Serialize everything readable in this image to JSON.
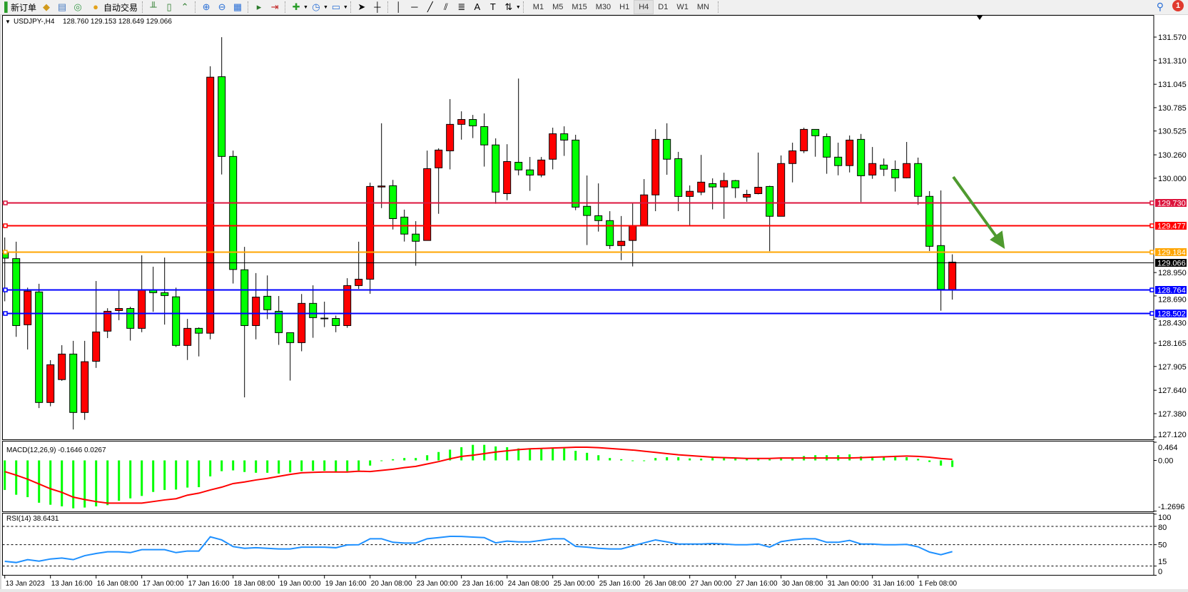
{
  "toolbar": {
    "new_order_label": "新订单",
    "auto_trading_label": "自动交易",
    "timeframes": [
      "M1",
      "M5",
      "M15",
      "M30",
      "H1",
      "H4",
      "D1",
      "W1",
      "MN"
    ],
    "active_timeframe": "H4",
    "notification_count": "1",
    "icons": [
      "new-order-icon",
      "gold-bars-icon",
      "history-icon",
      "signal-icon",
      "auto-trading-icon",
      "bar-chart-icon",
      "candlestick-icon",
      "line-chart-icon",
      "zoom-in-icon",
      "zoom-out-icon",
      "tile-windows-icon",
      "auto-scroll-icon",
      "chart-shift-icon",
      "indicators-icon",
      "periods-icon",
      "templates-icon",
      "cursor-icon",
      "crosshair-icon",
      "vertical-line-icon",
      "horizontal-line-icon",
      "trendline-icon",
      "equidistant-channel-icon",
      "fibonacci-icon",
      "text-icon",
      "text-label-icon",
      "arrows-icon",
      "search-icon",
      "notification-icon"
    ]
  },
  "header": {
    "symbol": "USDJPY-,H4",
    "ohlc": "128.760 129.153 128.649 129.066"
  },
  "colors": {
    "bull": "#ff0000",
    "bear": "#00ff00",
    "arrow": "#4e9a2e",
    "macd_hist": "#00ff00",
    "macd_signal": "#ff0000",
    "rsi": "#1e90ff"
  },
  "price_axis": {
    "ticks": [
      "131.570",
      "131.310",
      "131.045",
      "130.785",
      "130.525",
      "130.260",
      "130.000",
      "128.950",
      "128.690",
      "128.430",
      "128.165",
      "127.905",
      "127.640",
      "127.380",
      "127.120"
    ]
  },
  "levels": [
    {
      "price": "129.730",
      "color": "#dc143c"
    },
    {
      "price": "129.477",
      "color": "#ff0000"
    },
    {
      "price": "129.184",
      "color": "#ffa500"
    },
    {
      "price": "129.066",
      "color": "#000000",
      "bid": true
    },
    {
      "price": "128.764",
      "color": "#0000ff"
    },
    {
      "price": "128.502",
      "color": "#0000ff"
    }
  ],
  "time_axis": [
    "13 Jan 2023",
    "13 Jan 16:00",
    "16 Jan 08:00",
    "17 Jan 00:00",
    "17 Jan 16:00",
    "18 Jan 08:00",
    "19 Jan 00:00",
    "19 Jan 16:00",
    "20 Jan 08:00",
    "23 Jan 00:00",
    "23 Jan 16:00",
    "24 Jan 08:00",
    "25 Jan 00:00",
    "25 Jan 16:00",
    "26 Jan 08:00",
    "27 Jan 00:00",
    "27 Jan 16:00",
    "30 Jan 08:00",
    "31 Jan 00:00",
    "31 Jan 16:00",
    "1 Feb 08:00"
  ],
  "macd": {
    "label": "MACD(12,26,9) -0.1646 0.0267",
    "axis": [
      "0.464",
      "0.00",
      "-1.2696"
    ]
  },
  "rsi": {
    "label": "RSI(14) 38.6431",
    "axis": [
      "100",
      "80",
      "50",
      "15",
      "0"
    ],
    "levels": [
      80,
      50,
      15
    ]
  },
  "chart_data": {
    "type": "candlestick",
    "symbol": "USDJPY-",
    "timeframe": "H4",
    "ylim": [
      127.12,
      131.57
    ],
    "ohlc": [
      [
        129.17,
        129.34,
        128.63,
        129.11
      ],
      [
        129.105,
        129.293,
        128.235,
        128.36
      ],
      [
        128.369,
        128.782,
        128.094,
        128.743
      ],
      [
        128.734,
        128.825,
        127.442,
        127.504
      ],
      [
        127.504,
        127.975,
        127.462,
        127.924
      ],
      [
        127.759,
        128.142,
        127.745,
        128.043
      ],
      [
        128.043,
        128.19,
        127.204,
        127.393
      ],
      [
        127.393,
        128.19,
        127.311,
        127.958
      ],
      [
        127.963,
        128.856,
        127.889,
        128.289
      ],
      [
        128.298,
        128.553,
        128.221,
        128.519
      ],
      [
        128.527,
        128.76,
        128.42,
        128.55
      ],
      [
        128.55,
        128.57,
        128.193,
        128.329
      ],
      [
        128.329,
        129.142,
        128.286,
        128.76
      ],
      [
        128.76,
        129.015,
        128.513,
        128.726
      ],
      [
        128.726,
        129.117,
        128.371,
        128.694
      ],
      [
        128.68,
        128.782,
        128.122,
        128.139
      ],
      [
        128.139,
        128.434,
        127.977,
        128.329
      ],
      [
        128.329,
        128.34,
        128.017,
        128.275
      ],
      [
        128.275,
        131.246,
        128.207,
        131.124
      ],
      [
        131.129,
        131.569,
        130.041,
        130.242
      ],
      [
        130.242,
        130.307,
        128.828,
        128.984
      ],
      [
        128.981,
        129.236,
        127.561,
        128.36
      ],
      [
        128.36,
        128.944,
        128.207,
        128.677
      ],
      [
        128.686,
        128.918,
        128.431,
        128.536
      ],
      [
        128.519,
        128.689,
        128.145,
        128.281
      ],
      [
        128.281,
        128.281,
        127.748,
        128.17
      ],
      [
        128.17,
        128.711,
        128.074,
        128.607
      ],
      [
        128.607,
        128.808,
        128.224,
        128.448
      ],
      [
        128.443,
        128.626,
        128.343,
        128.441
      ],
      [
        128.439,
        128.471,
        128.286,
        128.36
      ],
      [
        128.36,
        128.887,
        128.335,
        128.805
      ],
      [
        128.805,
        129.293,
        128.768,
        128.876
      ],
      [
        128.876,
        129.95,
        128.714,
        129.908
      ],
      [
        129.902,
        130.611,
        129.667,
        129.913
      ],
      [
        129.916,
        129.981,
        129.429,
        129.55
      ],
      [
        129.567,
        129.65,
        129.295,
        129.378
      ],
      [
        129.378,
        129.522,
        129.026,
        129.298
      ],
      [
        129.307,
        130.307,
        129.307,
        130.106
      ],
      [
        130.115,
        130.333,
        129.604,
        130.313
      ],
      [
        130.304,
        130.88,
        130.098,
        130.599
      ],
      [
        130.599,
        130.744,
        130.429,
        130.653
      ],
      [
        130.653,
        130.704,
        130.446,
        130.582
      ],
      [
        130.574,
        130.721,
        130.129,
        130.37
      ],
      [
        130.37,
        130.443,
        129.715,
        129.845
      ],
      [
        129.828,
        130.378,
        129.755,
        130.185
      ],
      [
        130.177,
        131.109,
        130.032,
        130.092
      ],
      [
        130.092,
        130.236,
        129.859,
        130.035
      ],
      [
        130.035,
        130.236,
        130.01,
        130.202
      ],
      [
        130.211,
        130.562,
        130.098,
        130.494
      ],
      [
        130.494,
        130.577,
        130.248,
        130.424
      ],
      [
        130.424,
        130.483,
        129.644,
        129.678
      ],
      [
        129.687,
        130.03,
        129.256,
        129.585
      ],
      [
        129.582,
        129.942,
        129.406,
        129.528
      ],
      [
        129.528,
        129.633,
        129.213,
        129.25
      ],
      [
        129.25,
        129.579,
        129.088,
        129.298
      ],
      [
        129.307,
        129.721,
        129.018,
        129.468
      ],
      [
        129.477,
        129.99,
        129.477,
        129.814
      ],
      [
        129.814,
        130.545,
        129.633,
        130.432
      ],
      [
        130.432,
        130.611,
        130.038,
        130.211
      ],
      [
        130.217,
        130.293,
        129.633,
        129.797
      ],
      [
        129.797,
        129.919,
        129.477,
        129.854
      ],
      [
        129.845,
        130.259,
        129.811,
        129.956
      ],
      [
        129.939,
        129.998,
        129.653,
        129.902
      ],
      [
        129.902,
        130.061,
        129.548,
        129.973
      ],
      [
        129.973,
        129.981,
        129.78,
        129.893
      ],
      [
        129.789,
        129.871,
        129.738,
        129.82
      ],
      [
        129.828,
        130.285,
        129.82,
        129.899
      ],
      [
        129.908,
        129.916,
        129.188,
        129.576
      ],
      [
        129.576,
        130.253,
        129.576,
        130.163
      ],
      [
        130.163,
        130.395,
        129.953,
        130.304
      ],
      [
        130.304,
        130.562,
        130.279,
        130.543
      ],
      [
        130.543,
        130.543,
        130.239,
        130.472
      ],
      [
        130.463,
        130.497,
        130.049,
        130.234
      ],
      [
        130.234,
        130.395,
        130.032,
        130.14
      ],
      [
        130.14,
        130.475,
        130.064,
        130.424
      ],
      [
        130.432,
        130.492,
        129.735,
        130.027
      ],
      [
        130.035,
        130.347,
        129.993,
        130.163
      ],
      [
        130.146,
        130.219,
        130.024,
        130.1
      ],
      [
        130.098,
        130.197,
        129.851,
        130.004
      ],
      [
        130.004,
        130.403,
        129.999,
        130.163
      ],
      [
        130.163,
        130.229,
        129.703,
        129.798
      ],
      [
        129.798,
        129.856,
        129.189,
        129.242
      ],
      [
        129.25,
        129.864,
        128.525,
        128.763
      ],
      [
        128.76,
        129.153,
        128.649,
        129.066
      ]
    ],
    "macd_hist": [
      -0.74,
      -0.86,
      -0.92,
      -1.06,
      -1.11,
      -1.15,
      -1.2,
      -1.18,
      -1.15,
      -1.12,
      -1.01,
      -0.95,
      -0.89,
      -0.79,
      -0.74,
      -0.73,
      -0.68,
      -0.67,
      -0.4,
      -0.27,
      -0.25,
      -0.29,
      -0.31,
      -0.31,
      -0.33,
      -0.3,
      -0.27,
      -0.26,
      -0.26,
      -0.29,
      -0.27,
      -0.25,
      -0.13,
      -0.01,
      0.03,
      0.06,
      0.06,
      0.13,
      0.21,
      0.27,
      0.33,
      0.39,
      0.39,
      0.35,
      0.33,
      0.3,
      0.3,
      0.3,
      0.31,
      0.3,
      0.24,
      0.19,
      0.13,
      0.06,
      0.03,
      -0.005,
      -0.005,
      0.06,
      0.08,
      0.08,
      0.05,
      0.045,
      0.06,
      0.06,
      0.06,
      0.06,
      0.06,
      0.03,
      0.06,
      0.06,
      0.11,
      0.13,
      0.13,
      0.13,
      0.15,
      0.1,
      0.1,
      0.1,
      0.08,
      0.08,
      0.04,
      -0.04,
      -0.13,
      -0.1646
    ],
    "macd_signal": [
      -0.28,
      -0.37,
      -0.47,
      -0.59,
      -0.71,
      -0.8,
      -0.92,
      -0.98,
      -1.03,
      -1.07,
      -1.07,
      -1.07,
      -1.07,
      -1.03,
      -0.99,
      -0.96,
      -0.87,
      -0.82,
      -0.74,
      -0.67,
      -0.58,
      -0.54,
      -0.49,
      -0.45,
      -0.4,
      -0.35,
      -0.31,
      -0.3,
      -0.29,
      -0.29,
      -0.29,
      -0.27,
      -0.28,
      -0.25,
      -0.22,
      -0.18,
      -0.15,
      -0.09,
      -0.03,
      0.04,
      0.1,
      0.13,
      0.17,
      0.21,
      0.24,
      0.27,
      0.29,
      0.3,
      0.31,
      0.32,
      0.33,
      0.33,
      0.32,
      0.3,
      0.28,
      0.26,
      0.23,
      0.2,
      0.17,
      0.14,
      0.12,
      0.1,
      0.08,
      0.07,
      0.06,
      0.05,
      0.05,
      0.05,
      0.06,
      0.06,
      0.06,
      0.06,
      0.06,
      0.06,
      0.06,
      0.07,
      0.08,
      0.09,
      0.1,
      0.11,
      0.1,
      0.08,
      0.05,
      0.0267
    ],
    "macd_ylim": [
      -1.2696,
      0.464
    ],
    "rsi": [
      22.8,
      20.8,
      25.5,
      23,
      26.6,
      28.2,
      25.5,
      32,
      35.6,
      38.3,
      38.3,
      37,
      41.8,
      41.8,
      41.8,
      37,
      39.6,
      39.6,
      62.8,
      57.8,
      46.9,
      44.1,
      45,
      44.1,
      43,
      43,
      46,
      46,
      46,
      45,
      49.6,
      49.9,
      59.7,
      59.7,
      53.9,
      52.7,
      52.7,
      59.7,
      61.6,
      63.6,
      63.4,
      62.4,
      61.6,
      53,
      55.8,
      54.6,
      54.6,
      57,
      59.7,
      59.7,
      47.3,
      46,
      44.1,
      43,
      43,
      48,
      53,
      57.8,
      54.6,
      51.1,
      51.1,
      51.1,
      51.9,
      51.1,
      49.9,
      49.9,
      51.1,
      46,
      55,
      57.8,
      59.7,
      59.7,
      53.9,
      53.9,
      57,
      51.1,
      51.1,
      49.9,
      49.9,
      50.4,
      46.5,
      37.9,
      33.6,
      38.6431
    ],
    "rsi_ylim": [
      0,
      100
    ],
    "annotation": "down-arrow"
  }
}
